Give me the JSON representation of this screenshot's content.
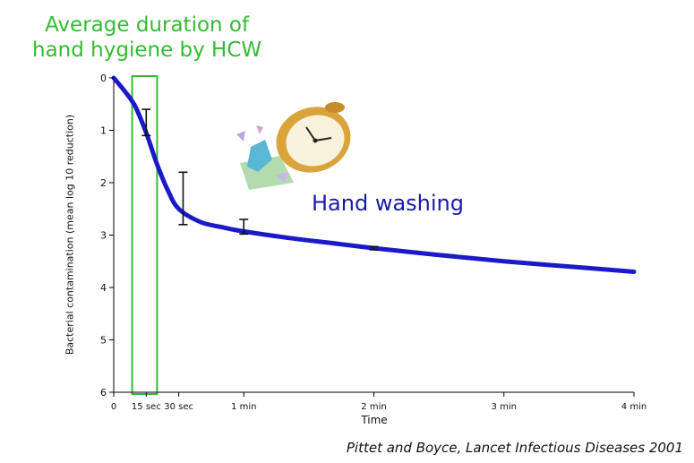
{
  "heading": {
    "line1": "Average duration of",
    "line2": "hand hygiene by HCW"
  },
  "citation": "Pittet and Boyce, Lancet Infectious Diseases 2001",
  "colors": {
    "heading": "#33bb33",
    "curve": "#1a1ac8",
    "series_label": "#1a1aa8",
    "highlight_box": "#33bb33"
  },
  "clock_icon": "alarm-clock-icon",
  "chart_data": {
    "type": "line",
    "title": "",
    "xlabel": "Time",
    "ylabel": "Bacterial contamination (mean log 10 reduction)",
    "x_unit": "seconds",
    "xlim": [
      0,
      240
    ],
    "ylim": [
      0,
      6
    ],
    "y_inverted": true,
    "grid": false,
    "x_ticks": [
      {
        "value": 0,
        "label": "0"
      },
      {
        "value": 15,
        "label": "15 sec"
      },
      {
        "value": 30,
        "label": "30 sec"
      },
      {
        "value": 60,
        "label": "1 min"
      },
      {
        "value": 120,
        "label": "2 min"
      },
      {
        "value": 180,
        "label": "3 min"
      },
      {
        "value": 240,
        "label": "4 min"
      }
    ],
    "y_ticks": [
      {
        "value": 0,
        "label": "0"
      },
      {
        "value": 1,
        "label": "1"
      },
      {
        "value": 2,
        "label": "2"
      },
      {
        "value": 3,
        "label": "3"
      },
      {
        "value": 4,
        "label": "4"
      },
      {
        "value": 5,
        "label": "5"
      },
      {
        "value": 6,
        "label": "6"
      }
    ],
    "series": [
      {
        "name": "Hand washing",
        "x": [
          0,
          5,
          10,
          15,
          20,
          25,
          30,
          40,
          50,
          60,
          80,
          100,
          120,
          150,
          180,
          210,
          240
        ],
        "y": [
          0,
          0.25,
          0.55,
          1.05,
          1.65,
          2.15,
          2.5,
          2.75,
          2.85,
          2.93,
          3.05,
          3.15,
          3.25,
          3.38,
          3.5,
          3.6,
          3.7
        ]
      }
    ],
    "error_bars": [
      {
        "x": 15,
        "y": 1.05,
        "low": 0.6,
        "high": 1.1
      },
      {
        "x": 32,
        "y": 2.3,
        "low": 1.8,
        "high": 2.8
      },
      {
        "x": 60,
        "y": 2.85,
        "low": 2.7,
        "high": 2.98
      },
      {
        "x": 120,
        "y": 3.25,
        "low": 3.22,
        "high": 3.28
      }
    ],
    "highlight": {
      "x_start": 8.5,
      "x_end": 20,
      "y_start": 0,
      "y_end": 6
    }
  }
}
